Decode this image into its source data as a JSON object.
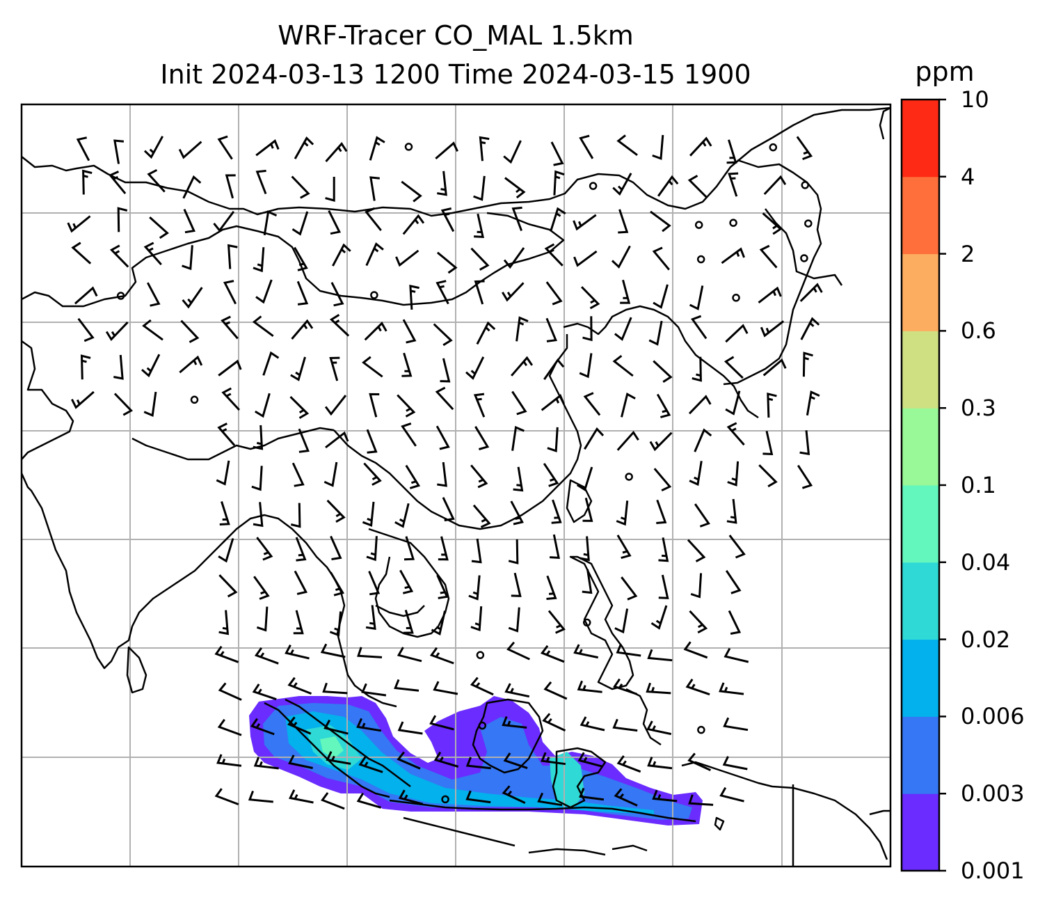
{
  "title_line1": "WRF-Tracer CO_MAL 1.5km",
  "title_line2": "Init 2024-03-13 1200 Time 2024-03-15 1900",
  "colorbar": {
    "units": "ppm",
    "levels": [
      "0.001",
      "0.003",
      "0.006",
      "0.02",
      "0.04",
      "0.1",
      "0.3",
      "0.6",
      "2",
      "4",
      "10"
    ],
    "colors": [
      "#6a2cff",
      "#3577f4",
      "#03b1ec",
      "#2fd9d5",
      "#64f7bd",
      "#99f897",
      "#cfe083",
      "#fdad60",
      "#fe6f3b",
      "#fe2a15"
    ]
  },
  "chart_data": {
    "type": "map",
    "field": "CO_MAL tracer concentration",
    "units": "ppm",
    "overlays": [
      "coastlines",
      "country borders",
      "wind barbs",
      "lat/lon gridlines"
    ],
    "grid": true,
    "colorbar_position": "right"
  }
}
